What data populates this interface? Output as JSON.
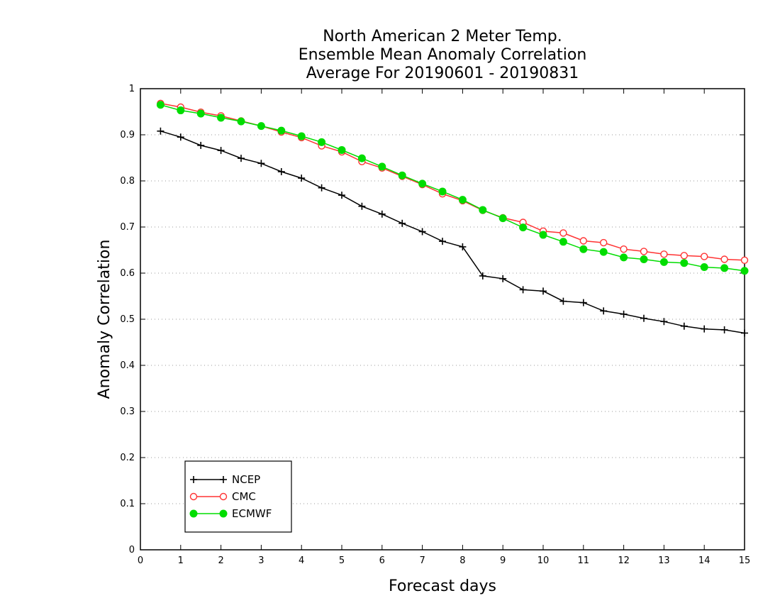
{
  "chart_data": {
    "type": "line",
    "title": [
      "North American 2 Meter Temp.",
      "Ensemble Mean Anomaly Correlation",
      "Average For 20190601 - 20190831"
    ],
    "xlabel": "Forecast days",
    "ylabel": "Anomaly Correlation",
    "xlim": [
      0,
      15
    ],
    "ylim": [
      0,
      1
    ],
    "xticks": [
      "0",
      "1",
      "2",
      "3",
      "4",
      "5",
      "6",
      "7",
      "8",
      "9",
      "10",
      "11",
      "12",
      "13",
      "14",
      "15"
    ],
    "yticks": [
      "0",
      "0.1",
      "0.2",
      "0.3",
      "0.4",
      "0.5",
      "0.6",
      "0.7",
      "0.8",
      "0.9",
      "1"
    ],
    "grid": "horizontal dotted",
    "legend_position": "bottom-left",
    "x": [
      0.5,
      1,
      1.5,
      2,
      2.5,
      3,
      3.5,
      4,
      4.5,
      5,
      5.5,
      6,
      6.5,
      7,
      7.5,
      8,
      8.5,
      9,
      9.5,
      10,
      10.5,
      11,
      11.5,
      12,
      12.5,
      13,
      13.5,
      14,
      14.5,
      15
    ],
    "series": [
      {
        "name": "NCEP",
        "color": "#000000",
        "marker": "plus",
        "values": [
          0.908,
          0.895,
          0.877,
          0.866,
          0.849,
          0.838,
          0.82,
          0.806,
          0.785,
          0.769,
          0.745,
          0.728,
          0.708,
          0.69,
          0.669,
          0.657,
          0.594,
          0.588,
          0.564,
          0.561,
          0.539,
          0.536,
          0.518,
          0.511,
          0.502,
          0.495,
          0.485,
          0.479,
          0.477,
          0.47
        ]
      },
      {
        "name": "CMC",
        "color": "#ff3333",
        "marker": "open-circle",
        "values": [
          0.968,
          0.96,
          0.949,
          0.941,
          0.93,
          0.919,
          0.906,
          0.894,
          0.876,
          0.863,
          0.842,
          0.828,
          0.81,
          0.792,
          0.772,
          0.757,
          0.736,
          0.72,
          0.71,
          0.691,
          0.687,
          0.67,
          0.666,
          0.652,
          0.647,
          0.641,
          0.638,
          0.636,
          0.63,
          0.628
        ]
      },
      {
        "name": "ECMWF",
        "color": "#00dd00",
        "marker": "filled-circle",
        "values": [
          0.965,
          0.953,
          0.946,
          0.937,
          0.929,
          0.919,
          0.909,
          0.897,
          0.884,
          0.867,
          0.849,
          0.831,
          0.812,
          0.794,
          0.777,
          0.759,
          0.737,
          0.719,
          0.699,
          0.683,
          0.668,
          0.652,
          0.646,
          0.634,
          0.63,
          0.624,
          0.622,
          0.613,
          0.611,
          0.605
        ]
      }
    ]
  }
}
